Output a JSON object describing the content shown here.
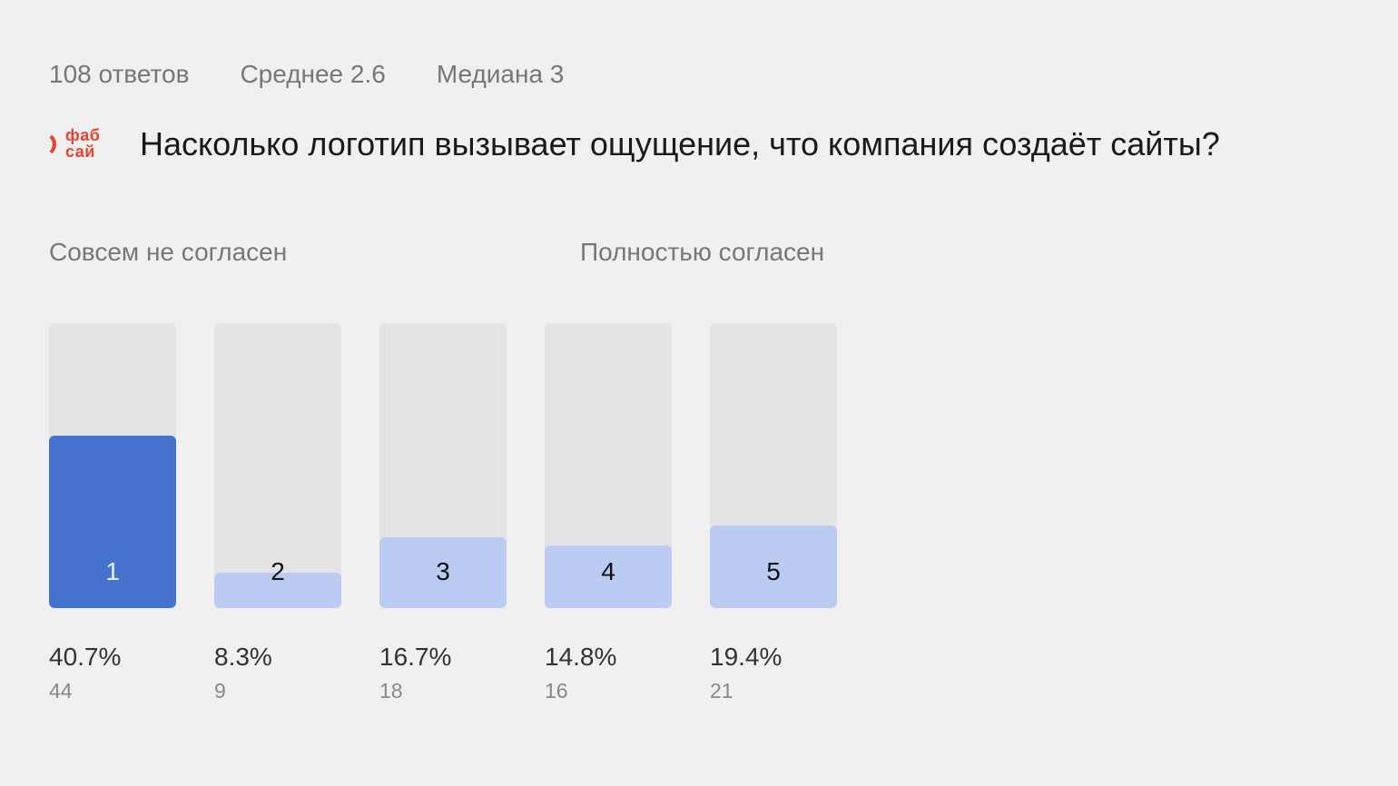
{
  "summary": {
    "responses": "108 ответов",
    "mean": "Среднее 2.6",
    "median": "Медиана 3"
  },
  "logo": {
    "line1": "фаб",
    "line2": "сай",
    "color": "#e8432f"
  },
  "question": "Насколько логотип вызывает ощущение, что компания создаёт сайты?",
  "scale": {
    "left_label": "Совсем не согласен",
    "right_label": "Полностью согласен"
  },
  "chart_data": {
    "type": "bar",
    "categories": [
      "1",
      "2",
      "3",
      "4",
      "5"
    ],
    "values": [
      40.7,
      8.3,
      16.7,
      14.8,
      19.4
    ],
    "percent_labels": [
      "40.7%",
      "8.3%",
      "16.7%",
      "14.8%",
      "19.4%"
    ],
    "counts": [
      "44",
      "9",
      "18",
      "16",
      "21"
    ],
    "ylim": [
      0,
      100
    ],
    "highlighted_category": "1",
    "colors": {
      "highlight": "#4472cc",
      "normal": "#bccbf2",
      "track": "#e4e4e6"
    }
  }
}
